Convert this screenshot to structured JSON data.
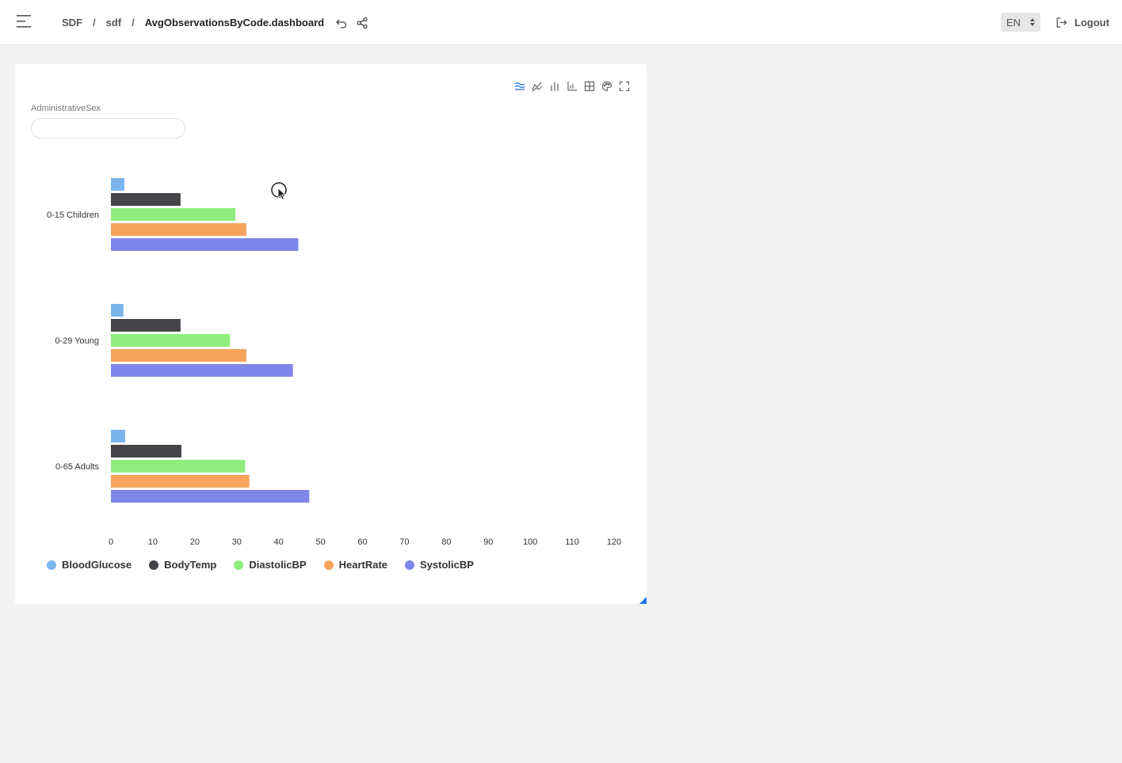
{
  "header": {
    "breadcrumbs": [
      "SDF",
      "sdf",
      "AvgObservationsByCode.dashboard"
    ],
    "separator": "/",
    "language": "EN",
    "logout_label": "Logout"
  },
  "filter": {
    "label": "AdministrativeSex",
    "value": "",
    "placeholder": ""
  },
  "toolbar_icons": [
    "stacked-bars-icon",
    "line-chart-icon",
    "bar-chart-icon",
    "axis-icon",
    "table-icon",
    "palette-icon",
    "fullscreen-icon"
  ],
  "colors": {
    "accent": "#1a73e8",
    "BloodGlucose": "#7cb5ec",
    "BodyTemp": "#434348",
    "DiastolicBP": "#90ed7d",
    "HeartRate": "#f7a35c",
    "SystolicBP": "#8085e9"
  },
  "chart_data": {
    "type": "bar",
    "orientation": "horizontal",
    "categories": [
      "0-15 Children",
      "0-29 Young",
      "0-65 Adults"
    ],
    "series": [
      {
        "name": "BloodGlucose",
        "values": [
          3.2,
          3.0,
          3.4
        ]
      },
      {
        "name": "BodyTemp",
        "values": [
          16.6,
          16.6,
          16.8
        ]
      },
      {
        "name": "DiastolicBP",
        "values": [
          29.7,
          28.4,
          32.0
        ]
      },
      {
        "name": "HeartRate",
        "values": [
          32.3,
          32.3,
          33.0
        ]
      },
      {
        "name": "SystolicBP",
        "values": [
          44.7,
          43.4,
          47.3
        ]
      }
    ],
    "xlim": [
      0,
      120
    ],
    "x_ticks": [
      "0",
      "10",
      "20",
      "30",
      "40",
      "50",
      "60",
      "70",
      "80",
      "90",
      "100",
      "110",
      "120"
    ],
    "legend_position": "bottom-left",
    "grid": false
  }
}
